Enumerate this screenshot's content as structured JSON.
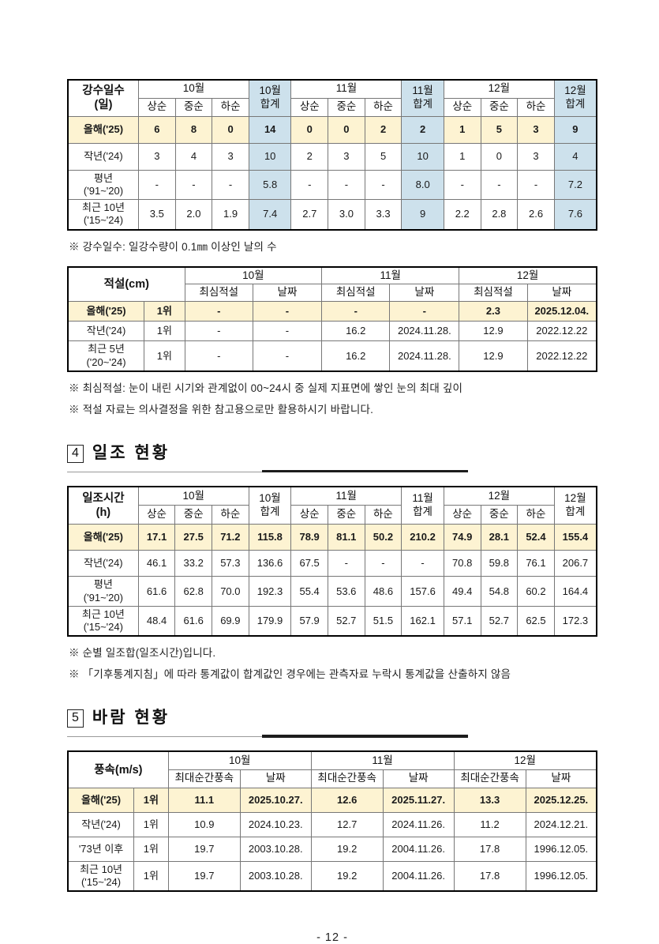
{
  "page": {
    "number": "- 12 -"
  },
  "colors": {
    "highlight_row_yellow": "#fdf3d2",
    "total_column_blue": "#cde1ec"
  },
  "sections": {
    "sunshine": {
      "num": "4",
      "title": "일조 현황"
    },
    "wind": {
      "num": "5",
      "title": "바람 현황"
    }
  },
  "footnotes": {
    "precip": [
      "※ 강수일수: 일강수량이 0.1㎜ 이상인 날의 수"
    ],
    "snow": [
      "※ 최심적설: 눈이 내린 시기와 관계없이 00~24시 중 실제 지표면에 쌓인 눈의 최대 깊이",
      "※ 적설 자료는 의사결정을 위한 참고용으로만 활용하시기 바랍니다."
    ],
    "sunshine": [
      "※ 순별 일조합(일조시간)입니다.",
      "※ 「기후통계지침」에 따라 통계값이 합계값인 경우에는 관측자료 누락시 통계값을 산출하지 않음"
    ]
  },
  "tables": [
    {
      "id": "precip",
      "name": "precip-days-table",
      "header": [
        [
          {
            "t": "강수일수\n(일)",
            "rs": 2,
            "c": "corner"
          },
          {
            "t": "10월",
            "cs": 3
          },
          {
            "t": "10월\n합계",
            "rs": 2,
            "c": "blue"
          },
          {
            "t": "11월",
            "cs": 3
          },
          {
            "t": "11월\n합계",
            "rs": 2,
            "c": "blue"
          },
          {
            "t": "12월",
            "cs": 3
          },
          {
            "t": "12월\n합계",
            "rs": 2,
            "c": "blue"
          }
        ],
        [
          {
            "t": "상순"
          },
          {
            "t": "중순"
          },
          {
            "t": "하순"
          },
          {
            "t": "상순"
          },
          {
            "t": "중순"
          },
          {
            "t": "하순"
          },
          {
            "t": "상순"
          },
          {
            "t": "중순"
          },
          {
            "t": "하순"
          }
        ]
      ],
      "body": [
        {
          "c": "hl",
          "cells": [
            {
              "t": "올해('25)"
            },
            {
              "t": "6"
            },
            {
              "t": "8"
            },
            {
              "t": "0"
            },
            {
              "t": "14",
              "c": "blue"
            },
            {
              "t": "0"
            },
            {
              "t": "0"
            },
            {
              "t": "2"
            },
            {
              "t": "2",
              "c": "blue"
            },
            {
              "t": "1"
            },
            {
              "t": "5"
            },
            {
              "t": "3"
            },
            {
              "t": "9",
              "c": "blue"
            }
          ]
        },
        {
          "cells": [
            {
              "t": "작년('24)"
            },
            {
              "t": "3"
            },
            {
              "t": "4"
            },
            {
              "t": "3"
            },
            {
              "t": "10",
              "c": "blue"
            },
            {
              "t": "2"
            },
            {
              "t": "3"
            },
            {
              "t": "5"
            },
            {
              "t": "10",
              "c": "blue"
            },
            {
              "t": "1"
            },
            {
              "t": "0"
            },
            {
              "t": "3"
            },
            {
              "t": "4",
              "c": "blue"
            }
          ]
        },
        {
          "cells": [
            {
              "t": "평년\n('91~'20)"
            },
            {
              "t": "-"
            },
            {
              "t": "-"
            },
            {
              "t": "-"
            },
            {
              "t": "5.8",
              "c": "blue"
            },
            {
              "t": "-"
            },
            {
              "t": "-"
            },
            {
              "t": "-"
            },
            {
              "t": "8.0",
              "c": "blue"
            },
            {
              "t": "-"
            },
            {
              "t": "-"
            },
            {
              "t": "-"
            },
            {
              "t": "7.2",
              "c": "blue"
            }
          ]
        },
        {
          "cells": [
            {
              "t": "최근 10년\n('15~'24)"
            },
            {
              "t": "3.5"
            },
            {
              "t": "2.0"
            },
            {
              "t": "1.9"
            },
            {
              "t": "7.4",
              "c": "blue"
            },
            {
              "t": "2.7"
            },
            {
              "t": "3.0"
            },
            {
              "t": "3.3"
            },
            {
              "t": "9",
              "c": "blue"
            },
            {
              "t": "2.2"
            },
            {
              "t": "2.8"
            },
            {
              "t": "2.6"
            },
            {
              "t": "7.6",
              "c": "blue"
            }
          ]
        }
      ]
    },
    {
      "id": "snow",
      "name": "snow-depth-table",
      "header": [
        [
          {
            "t": "적설(cm)",
            "rs": 2,
            "cs": 2,
            "c": "corner"
          },
          {
            "t": "10월",
            "cs": 2
          },
          {
            "t": "11월",
            "cs": 2
          },
          {
            "t": "12월",
            "cs": 2
          }
        ],
        [
          {
            "t": "최심적설"
          },
          {
            "t": "날짜"
          },
          {
            "t": "최심적설"
          },
          {
            "t": "날짜"
          },
          {
            "t": "최심적설"
          },
          {
            "t": "날짜"
          }
        ]
      ],
      "body": [
        {
          "c": "hl",
          "cells": [
            {
              "t": "올해('25)"
            },
            {
              "t": "1위"
            },
            {
              "t": "-"
            },
            {
              "t": "-"
            },
            {
              "t": "-"
            },
            {
              "t": "-"
            },
            {
              "t": "2.3"
            },
            {
              "t": "2025.12.04."
            }
          ]
        },
        {
          "cells": [
            {
              "t": "작년('24)"
            },
            {
              "t": "1위"
            },
            {
              "t": "-"
            },
            {
              "t": "-"
            },
            {
              "t": "16.2"
            },
            {
              "t": "2024.11.28."
            },
            {
              "t": "12.9"
            },
            {
              "t": "2022.12.22"
            }
          ]
        },
        {
          "cells": [
            {
              "t": "최근 5년\n('20~'24)"
            },
            {
              "t": "1위"
            },
            {
              "t": "-"
            },
            {
              "t": "-"
            },
            {
              "t": "16.2"
            },
            {
              "t": "2024.11.28."
            },
            {
              "t": "12.9"
            },
            {
              "t": "2022.12.22"
            }
          ]
        }
      ]
    },
    {
      "id": "sunshine",
      "name": "sunshine-hours-table",
      "header": [
        [
          {
            "t": "일조시간\n(h)",
            "rs": 2,
            "c": "corner"
          },
          {
            "t": "10월",
            "cs": 3
          },
          {
            "t": "10월\n합계",
            "rs": 2
          },
          {
            "t": "11월",
            "cs": 3
          },
          {
            "t": "11월\n합계",
            "rs": 2
          },
          {
            "t": "12월",
            "cs": 3
          },
          {
            "t": "12월\n합계",
            "rs": 2
          }
        ],
        [
          {
            "t": "상순"
          },
          {
            "t": "중순"
          },
          {
            "t": "하순"
          },
          {
            "t": "상순"
          },
          {
            "t": "중순"
          },
          {
            "t": "하순"
          },
          {
            "t": "상순"
          },
          {
            "t": "중순"
          },
          {
            "t": "하순"
          }
        ]
      ],
      "body": [
        {
          "c": "hl",
          "cells": [
            {
              "t": "올해('25)"
            },
            {
              "t": "17.1"
            },
            {
              "t": "27.5"
            },
            {
              "t": "71.2"
            },
            {
              "t": "115.8"
            },
            {
              "t": "78.9"
            },
            {
              "t": "81.1"
            },
            {
              "t": "50.2"
            },
            {
              "t": "210.2"
            },
            {
              "t": "74.9"
            },
            {
              "t": "28.1"
            },
            {
              "t": "52.4"
            },
            {
              "t": "155.4"
            }
          ]
        },
        {
          "cells": [
            {
              "t": "작년('24)"
            },
            {
              "t": "46.1"
            },
            {
              "t": "33.2"
            },
            {
              "t": "57.3"
            },
            {
              "t": "136.6"
            },
            {
              "t": "67.5"
            },
            {
              "t": "-"
            },
            {
              "t": "-"
            },
            {
              "t": "-"
            },
            {
              "t": "70.8"
            },
            {
              "t": "59.8"
            },
            {
              "t": "76.1"
            },
            {
              "t": "206.7"
            }
          ]
        },
        {
          "cells": [
            {
              "t": "평년\n('91~'20)"
            },
            {
              "t": "61.6"
            },
            {
              "t": "62.8"
            },
            {
              "t": "70.0"
            },
            {
              "t": "192.3"
            },
            {
              "t": "55.4"
            },
            {
              "t": "53.6"
            },
            {
              "t": "48.6"
            },
            {
              "t": "157.6"
            },
            {
              "t": "49.4"
            },
            {
              "t": "54.8"
            },
            {
              "t": "60.2"
            },
            {
              "t": "164.4"
            }
          ]
        },
        {
          "cells": [
            {
              "t": "최근 10년\n('15~'24)"
            },
            {
              "t": "48.4"
            },
            {
              "t": "61.6"
            },
            {
              "t": "69.9"
            },
            {
              "t": "179.9"
            },
            {
              "t": "57.9"
            },
            {
              "t": "52.7"
            },
            {
              "t": "51.5"
            },
            {
              "t": "162.1"
            },
            {
              "t": "57.1"
            },
            {
              "t": "52.7"
            },
            {
              "t": "62.5"
            },
            {
              "t": "172.3"
            }
          ]
        }
      ]
    },
    {
      "id": "wind",
      "name": "wind-speed-table",
      "header": [
        [
          {
            "t": "풍속(m/s)",
            "rs": 2,
            "cs": 2,
            "c": "corner"
          },
          {
            "t": "10월",
            "cs": 2
          },
          {
            "t": "11월",
            "cs": 2
          },
          {
            "t": "12월",
            "cs": 2
          }
        ],
        [
          {
            "t": "최대순간풍속"
          },
          {
            "t": "날짜"
          },
          {
            "t": "최대순간풍속"
          },
          {
            "t": "날짜"
          },
          {
            "t": "최대순간풍속"
          },
          {
            "t": "날짜"
          }
        ]
      ],
      "body": [
        {
          "c": "hl",
          "cells": [
            {
              "t": "올해('25)"
            },
            {
              "t": "1위"
            },
            {
              "t": "11.1"
            },
            {
              "t": "2025.10.27."
            },
            {
              "t": "12.6"
            },
            {
              "t": "2025.11.27."
            },
            {
              "t": "13.3"
            },
            {
              "t": "2025.12.25."
            }
          ]
        },
        {
          "cells": [
            {
              "t": "작년('24)"
            },
            {
              "t": "1위"
            },
            {
              "t": "10.9"
            },
            {
              "t": "2024.10.23."
            },
            {
              "t": "12.7"
            },
            {
              "t": "2024.11.26."
            },
            {
              "t": "11.2"
            },
            {
              "t": "2024.12.21."
            }
          ]
        },
        {
          "cells": [
            {
              "t": "'73년 이후"
            },
            {
              "t": "1위"
            },
            {
              "t": "19.7"
            },
            {
              "t": "2003.10.28."
            },
            {
              "t": "19.2"
            },
            {
              "t": "2004.11.26."
            },
            {
              "t": "17.8"
            },
            {
              "t": "1996.12.05."
            }
          ]
        },
        {
          "cells": [
            {
              "t": "최근 10년\n('15~'24)"
            },
            {
              "t": "1위"
            },
            {
              "t": "19.7"
            },
            {
              "t": "2003.10.28."
            },
            {
              "t": "19.2"
            },
            {
              "t": "2004.11.26."
            },
            {
              "t": "17.8"
            },
            {
              "t": "1996.12.05."
            }
          ]
        }
      ]
    }
  ]
}
